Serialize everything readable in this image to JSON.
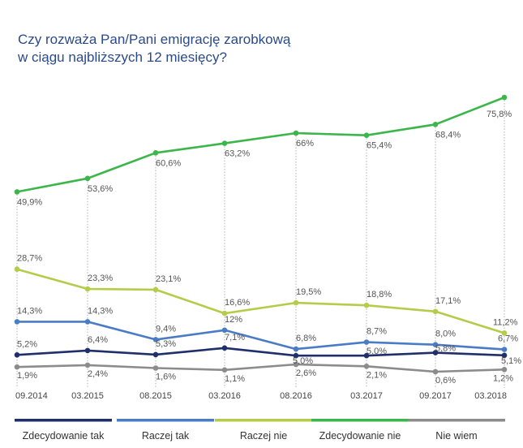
{
  "chart_data": {
    "type": "line",
    "title": [
      "Czy rozważa Pan/Pani emigrację zarobkową",
      "w ciągu najbliższych 12 miesięcy?"
    ],
    "x": [
      "09.2014",
      "03.2015",
      "08.2015",
      "03.2016",
      "08.2016",
      "03.2017",
      "09.2017",
      "03.2018"
    ],
    "ylim": [
      0,
      80
    ],
    "grid": "vertical dotted lines at each x",
    "legend_position": "bottom",
    "series": [
      {
        "name": "Zdecydowanie tak",
        "color": "#1f2f6b",
        "values": [
          5.2,
          6.4,
          5.3,
          7.1,
          5.0,
          5.0,
          5.8,
          5.1
        ],
        "labels": [
          "5,2%",
          "6,4%",
          "5,3%",
          "7,1%",
          "5,0%",
          "5,0%",
          "5,8%",
          "5,1%"
        ]
      },
      {
        "name": "Raczej tak",
        "color": "#4a7cc6",
        "values": [
          14.3,
          14.3,
          9.4,
          12.0,
          6.8,
          8.7,
          8.0,
          6.7
        ],
        "labels": [
          "14,3%",
          "14,3%",
          "9,4%",
          "12%",
          "6,8%",
          "8,7%",
          "8,0%",
          "6,7%"
        ]
      },
      {
        "name": "Raczej nie",
        "color": "#b3cc4a",
        "values": [
          28.7,
          23.3,
          23.1,
          16.6,
          19.5,
          18.8,
          17.1,
          11.2
        ],
        "labels": [
          "28,7%",
          "23,3%",
          "23,1%",
          "16,6%",
          "19,5%",
          "18,8%",
          "17,1%",
          "11,2%"
        ]
      },
      {
        "name": "Zdecydowanie nie",
        "color": "#3cb54a",
        "values": [
          49.9,
          53.6,
          60.6,
          63.2,
          66.0,
          65.4,
          68.4,
          75.8
        ],
        "labels": [
          "49,9%",
          "53,6%",
          "60,6%",
          "63,2%",
          "66%",
          "65,4%",
          "68,4%",
          "75,8%"
        ]
      },
      {
        "name": "Nie wiem",
        "color": "#8c8c8c",
        "values": [
          1.9,
          2.4,
          1.6,
          1.1,
          2.6,
          2.1,
          0.6,
          1.2
        ],
        "labels": [
          "1,9%",
          "2,4%",
          "1,6%",
          "1,1%",
          "2,6%",
          "2,1%",
          "0,6%",
          "1,2%"
        ]
      }
    ]
  }
}
